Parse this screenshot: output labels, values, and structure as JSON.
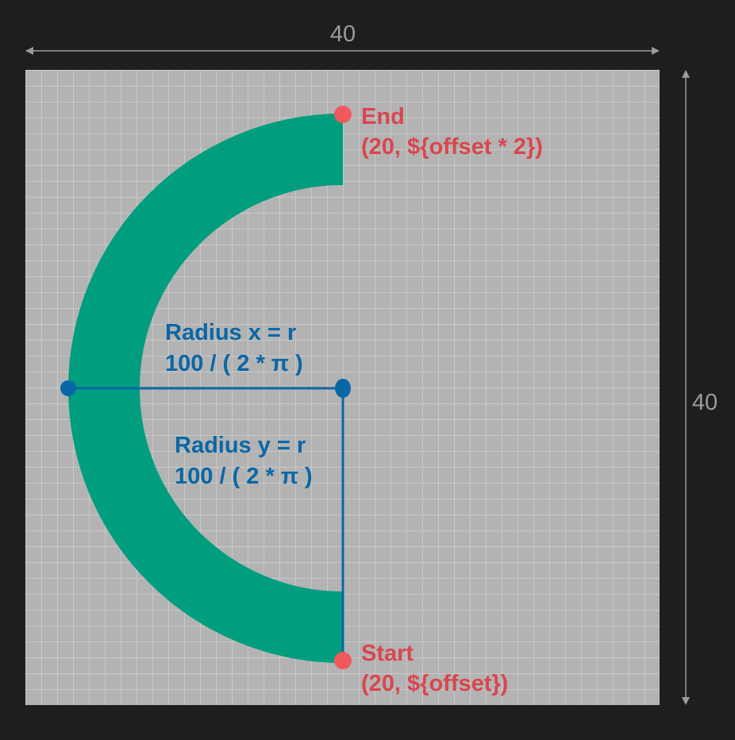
{
  "dimensions": {
    "width_label": "40",
    "height_label": "40"
  },
  "points": {
    "end": {
      "label": "End",
      "coords": "(20, ${offset * 2})"
    },
    "start": {
      "label": "Start",
      "coords": "(20, ${offset})"
    }
  },
  "radius": {
    "x_label": "Radius x = r",
    "x_formula": "100 / ( 2 * π )",
    "y_label": "Radius y = r",
    "y_formula": "100 / ( 2 * π )"
  },
  "colors": {
    "background": "#1e1e1e",
    "canvas": "#b3b3b3",
    "grid": "#d6d6d6",
    "arc": "#009e7e",
    "point_red": "#f05a5f",
    "text_red": "#d9464e",
    "radius_blue": "#0a67a6",
    "dimension": "#9b9b9b"
  }
}
